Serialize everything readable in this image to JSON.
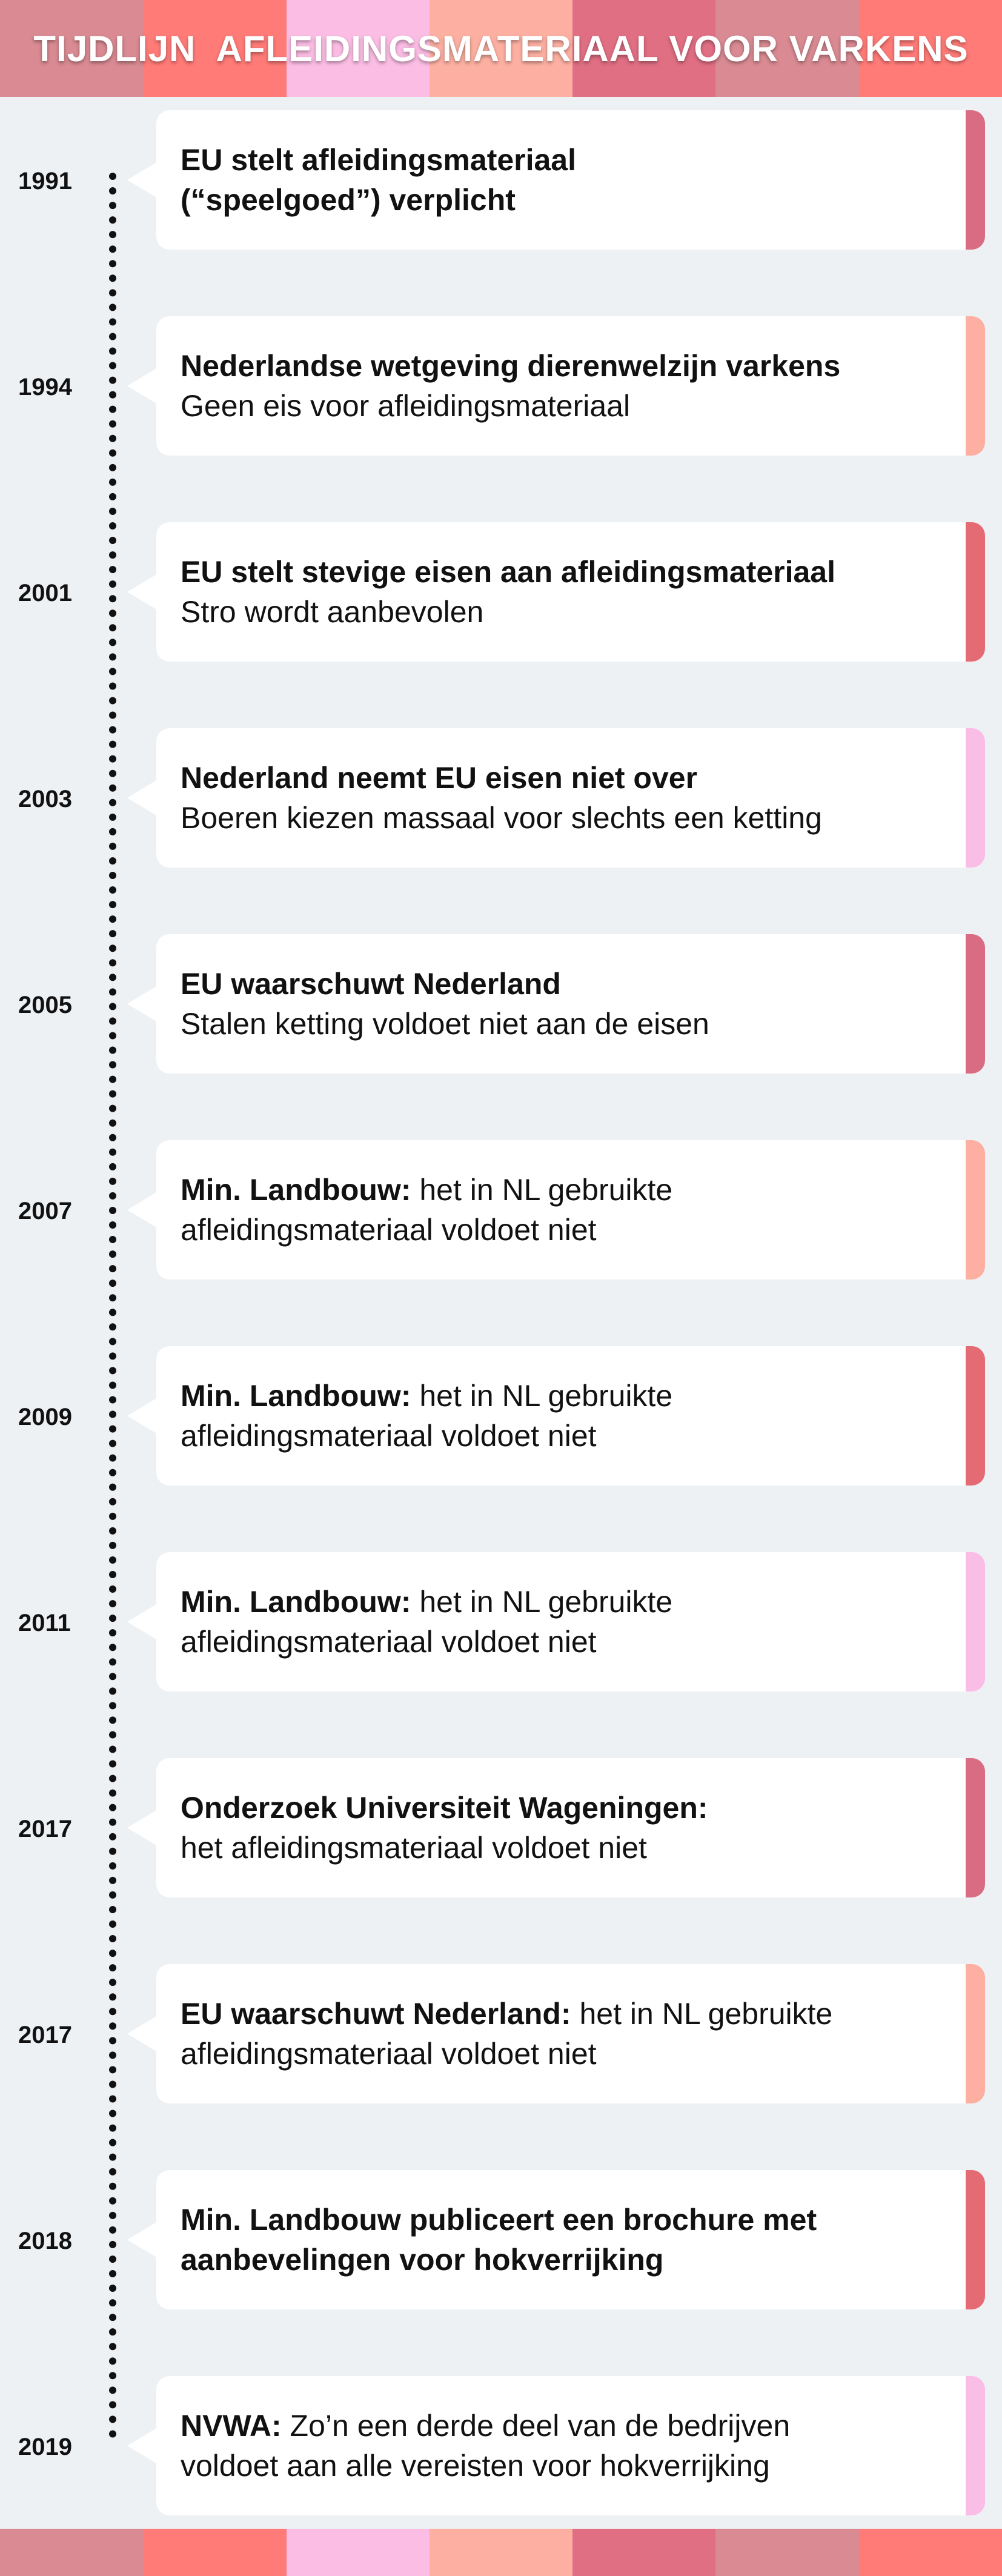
{
  "title": "TIJDLIJN  AFLEIDINGSMATERIAAL VOOR VARKENS",
  "colors": {
    "background": "#eef1f4",
    "stripes": [
      "#d98a92",
      "#ff7b78",
      "#fbbde4",
      "#fdb0a2",
      "#e06f83",
      "#d98a92",
      "#ff7b78"
    ],
    "accent_cycle": [
      "#d96c82",
      "#fdb0a2",
      "#e46a74",
      "#f9bde6"
    ]
  },
  "timeline": [
    {
      "year": "1991",
      "line1_bold": "EU stelt afleidingsmateriaal",
      "line1_rest": "",
      "line2_bold": "(“speelgoed”) verplicht",
      "line2_rest": ""
    },
    {
      "year": "1994",
      "line1_bold": "Nederlandse wetgeving dierenwelzijn varkens",
      "line1_rest": "",
      "line2_bold": "",
      "line2_rest": "Geen eis voor afleidingsmateriaal"
    },
    {
      "year": "2001",
      "line1_bold": "EU stelt stevige eisen aan afleidingsmateriaal",
      "line1_rest": "",
      "line2_bold": "",
      "line2_rest": "Stro wordt aanbevolen"
    },
    {
      "year": "2003",
      "line1_bold": "Nederland neemt EU eisen niet over",
      "line1_rest": "",
      "line2_bold": "",
      "line2_rest": "Boeren kiezen massaal voor slechts een ketting"
    },
    {
      "year": "2005",
      "line1_bold": "EU waarschuwt Nederland",
      "line1_rest": "",
      "line2_bold": "",
      "line2_rest": "Stalen ketting voldoet niet aan de eisen"
    },
    {
      "year": "2007",
      "line1_bold": "Min. Landbouw:",
      "line1_rest": " het in NL gebruikte",
      "line2_bold": "",
      "line2_rest": "afleidingsmateriaal voldoet niet"
    },
    {
      "year": "2009",
      "line1_bold": "Min. Landbouw:",
      "line1_rest": " het in NL gebruikte",
      "line2_bold": "",
      "line2_rest": "afleidingsmateriaal voldoet niet"
    },
    {
      "year": "2011",
      "line1_bold": "Min. Landbouw:",
      "line1_rest": " het in NL gebruikte",
      "line2_bold": "",
      "line2_rest": "afleidingsmateriaal voldoet niet"
    },
    {
      "year": "2017",
      "line1_bold": "Onderzoek Universiteit Wageningen:",
      "line1_rest": "",
      "line2_bold": "",
      "line2_rest": "het afleidingsmateriaal voldoet niet"
    },
    {
      "year": "2017",
      "line1_bold": "EU waarschuwt Nederland:",
      "line1_rest": " het in NL gebruikte",
      "line2_bold": "",
      "line2_rest": "afleidingsmateriaal voldoet niet"
    },
    {
      "year": "2018",
      "line1_bold": "Min. Landbouw publiceert een brochure met",
      "line1_rest": "",
      "line2_bold": "aanbevelingen voor hokverrijking",
      "line2_rest": ""
    },
    {
      "year": "2019",
      "line1_bold": "NVWA:",
      "line1_rest": " Zo’n een derde deel van de bedrijven",
      "line2_bold": "",
      "line2_rest": "voldoet aan alle vereisten voor hokverrijking"
    }
  ]
}
